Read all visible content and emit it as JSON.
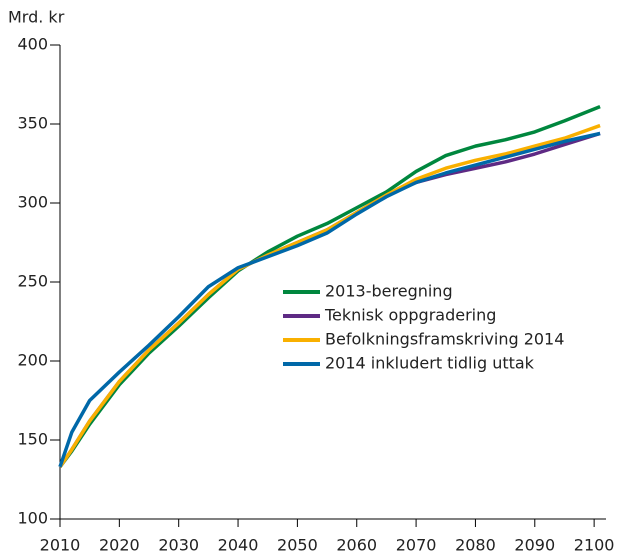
{
  "chart_data": {
    "type": "line",
    "y_axis_label": "Mrd. kr",
    "x": [
      2010,
      2012,
      2015,
      2020,
      2025,
      2030,
      2035,
      2040,
      2045,
      2050,
      2055,
      2060,
      2065,
      2070,
      2075,
      2080,
      2085,
      2090,
      2095,
      2101
    ],
    "series": [
      {
        "name": "2013-beregning",
        "color": "#00873e",
        "values": [
          133,
          143,
          160,
          185,
          205,
          222,
          240,
          257,
          269,
          279,
          287,
          297,
          307,
          320,
          330,
          336,
          340,
          345,
          352,
          361
        ]
      },
      {
        "name": "Teknisk oppgradering",
        "color": "#5e2a84",
        "values": [
          133,
          144,
          162,
          187,
          207,
          224,
          242,
          258,
          267,
          275,
          283,
          294,
          305,
          313,
          318,
          322,
          326,
          331,
          337,
          344
        ]
      },
      {
        "name": "Befolkningsframskriving 2014",
        "color": "#f9b000",
        "values": [
          133,
          144,
          162,
          187,
          207,
          224,
          242,
          258,
          267,
          275,
          283,
          294,
          305,
          315,
          322,
          327,
          331,
          336,
          341,
          349
        ]
      },
      {
        "name": "2014 inkludert tidlig uttak",
        "color": "#0068a8",
        "values": [
          133,
          155,
          175,
          193,
          210,
          228,
          247,
          259,
          266,
          273,
          281,
          293,
          304,
          313,
          319,
          324,
          329,
          334,
          339,
          344
        ]
      }
    ],
    "xlim": [
      2010,
      2102
    ],
    "xticks": [
      2010,
      2020,
      2030,
      2040,
      2050,
      2060,
      2070,
      2080,
      2090,
      2100
    ],
    "ylim": [
      100,
      400
    ],
    "yticks": [
      100,
      150,
      200,
      250,
      300,
      350,
      400
    ]
  }
}
